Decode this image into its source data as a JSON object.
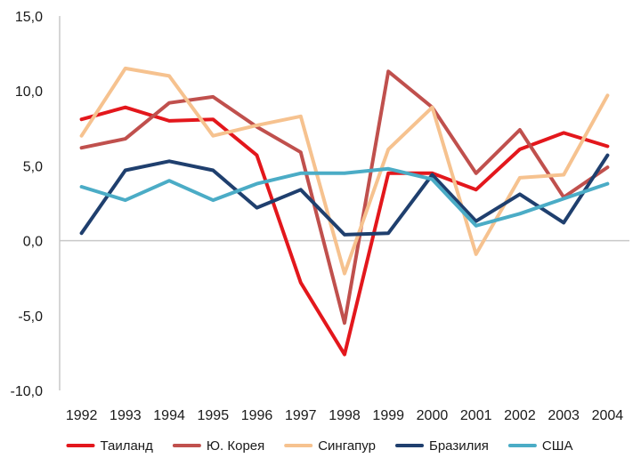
{
  "chart_data": {
    "type": "line",
    "title": "",
    "xlabel": "",
    "ylabel": "",
    "ylim": [
      -10,
      15
    ],
    "yticks": [
      15,
      10,
      5,
      0,
      -5,
      -10
    ],
    "ytick_labels": [
      "15,0",
      "10,0",
      "5,0",
      "0,0",
      "-5,0",
      "-10,0"
    ],
    "categories": [
      "1992",
      "1993",
      "1994",
      "1995",
      "1996",
      "1997",
      "1998",
      "1999",
      "2000",
      "2001",
      "2002",
      "2003",
      "2004"
    ],
    "grid": false,
    "legend_position": "bottom",
    "series": [
      {
        "name": "Таиланд",
        "color": "#e3171c",
        "values": [
          8.1,
          8.9,
          8.0,
          8.1,
          5.7,
          -2.8,
          -7.6,
          4.5,
          4.5,
          3.4,
          6.1,
          7.2,
          6.3
        ]
      },
      {
        "name": "Ю. Корея",
        "color": "#c0504d",
        "values": [
          6.2,
          6.8,
          9.2,
          9.6,
          7.6,
          5.9,
          -5.5,
          11.3,
          8.9,
          4.5,
          7.4,
          2.9,
          4.9
        ]
      },
      {
        "name": "Сингапур",
        "color": "#f6c28f",
        "values": [
          7.0,
          11.5,
          11.0,
          7.0,
          7.7,
          8.3,
          -2.2,
          6.1,
          8.9,
          -0.9,
          4.2,
          4.4,
          9.7
        ]
      },
      {
        "name": "Бразилия",
        "color": "#1f3f6e",
        "values": [
          0.5,
          4.7,
          5.3,
          4.7,
          2.2,
          3.4,
          0.4,
          0.5,
          4.4,
          1.3,
          3.1,
          1.2,
          5.7
        ]
      },
      {
        "name": "США",
        "color": "#4bacc6",
        "values": [
          3.6,
          2.7,
          4.0,
          2.7,
          3.8,
          4.5,
          4.5,
          4.8,
          4.1,
          1.0,
          1.8,
          2.8,
          3.8
        ]
      }
    ]
  }
}
